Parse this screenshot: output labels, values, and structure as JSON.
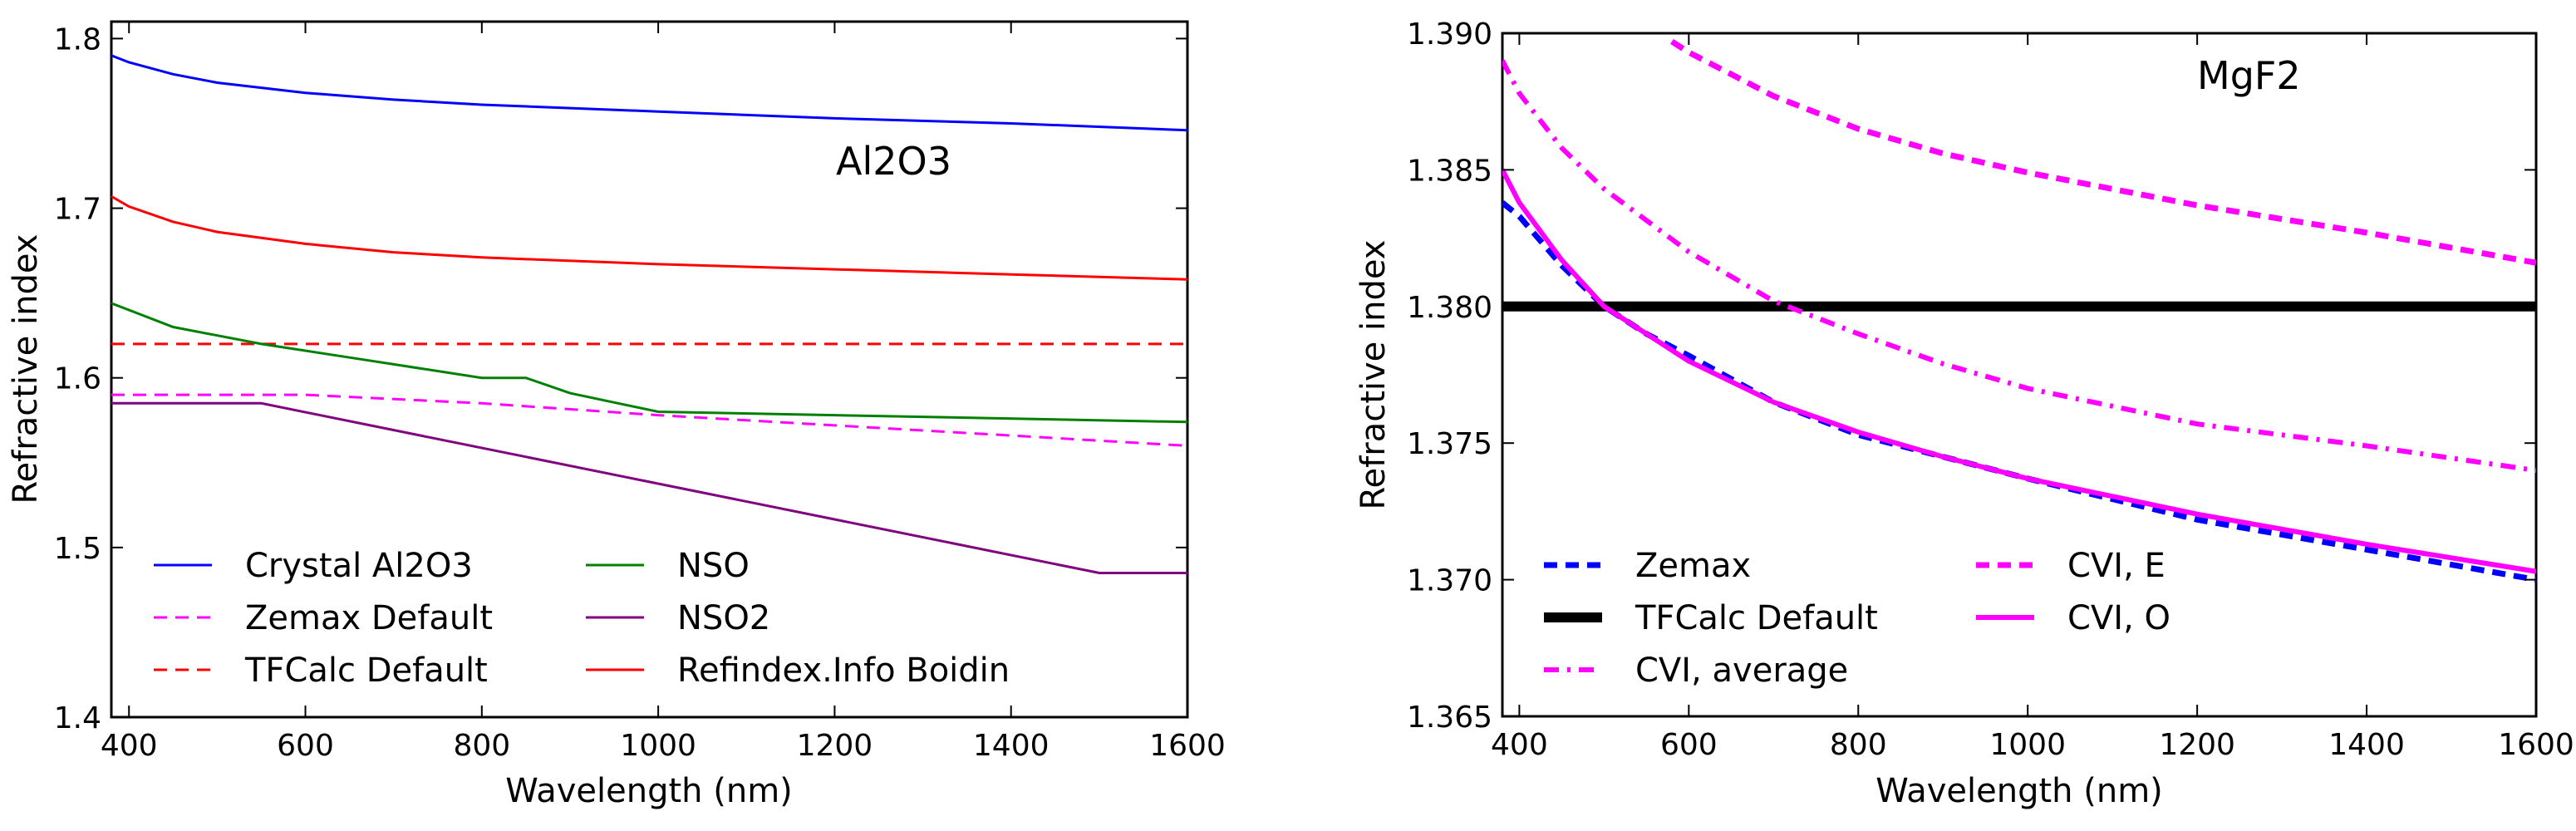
{
  "chart_data": [
    {
      "type": "line",
      "annotation": "Al2O3",
      "xlabel": "Wavelength (nm)",
      "ylabel": "Refractive index",
      "xlim": [
        380,
        1600
      ],
      "ylim": [
        1.4,
        1.81
      ],
      "xticks": [
        400,
        600,
        800,
        1000,
        1200,
        1400,
        1600
      ],
      "yticks": [
        1.4,
        1.5,
        1.6,
        1.7,
        1.8
      ],
      "ytick_labels": [
        "1.4",
        "1.5",
        "1.6",
        "1.7",
        "1.8"
      ],
      "legend_position": "lower-left",
      "legend_columns": 2,
      "series": [
        {
          "name": "Crystal Al2O3",
          "color": "#0000ff",
          "style": "solid",
          "points": [
            [
              380,
              1.79
            ],
            [
              400,
              1.786
            ],
            [
              450,
              1.779
            ],
            [
              500,
              1.774
            ],
            [
              600,
              1.768
            ],
            [
              700,
              1.764
            ],
            [
              800,
              1.761
            ],
            [
              1000,
              1.757
            ],
            [
              1200,
              1.753
            ],
            [
              1400,
              1.75
            ],
            [
              1600,
              1.746
            ]
          ]
        },
        {
          "name": "Zemax Default",
          "color": "#ff00ff",
          "style": "dashed",
          "points": [
            [
              380,
              1.59
            ],
            [
              600,
              1.59
            ],
            [
              800,
              1.585
            ],
            [
              1000,
              1.578
            ],
            [
              1200,
              1.572
            ],
            [
              1400,
              1.566
            ],
            [
              1600,
              1.56
            ]
          ]
        },
        {
          "name": "TFCalc Default",
          "color": "#ff0000",
          "style": "dashed",
          "points": [
            [
              380,
              1.62
            ],
            [
              1600,
              1.62
            ]
          ]
        },
        {
          "name": "NSO",
          "color": "#008000",
          "style": "solid",
          "points": [
            [
              380,
              1.644
            ],
            [
              450,
              1.63
            ],
            [
              550,
              1.62
            ],
            [
              650,
              1.612
            ],
            [
              800,
              1.6
            ],
            [
              850,
              1.6
            ],
            [
              900,
              1.591
            ],
            [
              1000,
              1.58
            ],
            [
              1600,
              1.574
            ]
          ]
        },
        {
          "name": "NSO2",
          "color": "#800080",
          "style": "solid",
          "points": [
            [
              380,
              1.585
            ],
            [
              550,
              1.585
            ],
            [
              1500,
              1.485
            ],
            [
              1600,
              1.485
            ]
          ]
        },
        {
          "name": "Refindex.Info Boidin",
          "color": "#ff0000",
          "style": "solid",
          "points": [
            [
              380,
              1.707
            ],
            [
              400,
              1.701
            ],
            [
              450,
              1.692
            ],
            [
              500,
              1.686
            ],
            [
              600,
              1.679
            ],
            [
              700,
              1.674
            ],
            [
              800,
              1.671
            ],
            [
              1000,
              1.667
            ],
            [
              1200,
              1.664
            ],
            [
              1400,
              1.661
            ],
            [
              1600,
              1.658
            ]
          ]
        }
      ]
    },
    {
      "type": "line",
      "annotation": "MgF2",
      "xlabel": "Wavelength (nm)",
      "ylabel": "Refractive index",
      "xlim": [
        380,
        1600
      ],
      "ylim": [
        1.365,
        1.39
      ],
      "xticks": [
        400,
        600,
        800,
        1000,
        1200,
        1400,
        1600
      ],
      "yticks": [
        1.365,
        1.37,
        1.375,
        1.38,
        1.385,
        1.39
      ],
      "ytick_labels": [
        "1.365",
        "1.370",
        "1.375",
        "1.380",
        "1.385",
        "1.390"
      ],
      "legend_position": "lower-left",
      "legend_columns": 2,
      "series": [
        {
          "name": "Zemax",
          "color": "#0000ff",
          "style": "dashed",
          "points": [
            [
              380,
              1.3838
            ],
            [
              400,
              1.3833
            ],
            [
              450,
              1.3815
            ],
            [
              500,
              1.38
            ],
            [
              550,
              1.379
            ],
            [
              600,
              1.3782
            ],
            [
              700,
              1.3765
            ],
            [
              800,
              1.3753
            ],
            [
              900,
              1.3745
            ],
            [
              1000,
              1.3737
            ],
            [
              1200,
              1.3722
            ],
            [
              1400,
              1.3711
            ],
            [
              1600,
              1.37
            ]
          ]
        },
        {
          "name": "TFCalc Default",
          "color": "#000000",
          "style": "solid-thick",
          "points": [
            [
              380,
              1.38
            ],
            [
              1600,
              1.38
            ]
          ]
        },
        {
          "name": "CVI, average",
          "color": "#ff00ff",
          "style": "dashdot",
          "points": [
            [
              380,
              1.389
            ],
            [
              400,
              1.3878
            ],
            [
              450,
              1.3858
            ],
            [
              500,
              1.3843
            ],
            [
              600,
              1.382
            ],
            [
              700,
              1.3802
            ],
            [
              800,
              1.379
            ],
            [
              900,
              1.3779
            ],
            [
              1000,
              1.377
            ],
            [
              1200,
              1.3757
            ],
            [
              1400,
              1.3749
            ],
            [
              1600,
              1.374
            ]
          ]
        },
        {
          "name": "CVI, E",
          "color": "#ff00ff",
          "style": "dashed",
          "points": [
            [
              580,
              1.3897
            ],
            [
              600,
              1.3893
            ],
            [
              700,
              1.3877
            ],
            [
              800,
              1.3865
            ],
            [
              900,
              1.3856
            ],
            [
              1000,
              1.3849
            ],
            [
              1200,
              1.3837
            ],
            [
              1400,
              1.3827
            ],
            [
              1600,
              1.3816
            ]
          ]
        },
        {
          "name": "CVI, O",
          "color": "#ff00ff",
          "style": "solid",
          "points": [
            [
              380,
              1.385
            ],
            [
              400,
              1.3838
            ],
            [
              450,
              1.3817
            ],
            [
              500,
              1.38
            ],
            [
              600,
              1.378
            ],
            [
              700,
              1.3765
            ],
            [
              800,
              1.3754
            ],
            [
              900,
              1.3745
            ],
            [
              1000,
              1.3737
            ],
            [
              1200,
              1.3724
            ],
            [
              1400,
              1.3713
            ],
            [
              1600,
              1.3703
            ]
          ]
        }
      ]
    }
  ]
}
